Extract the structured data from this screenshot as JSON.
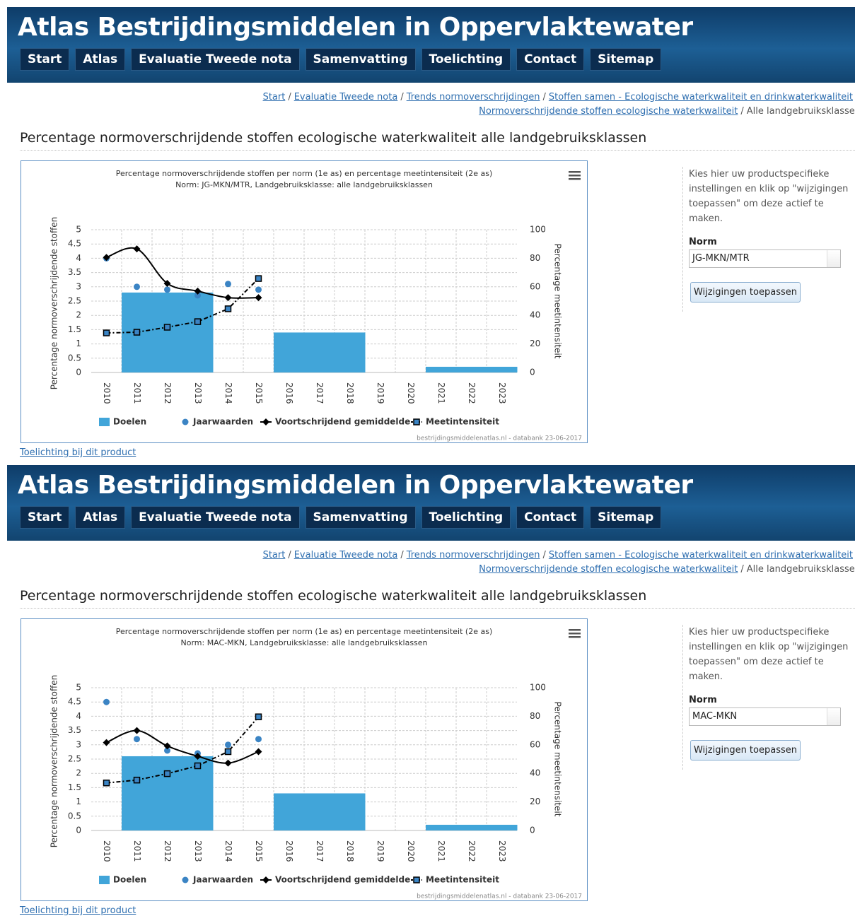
{
  "panels": [
    {
      "header_title": "Atlas Bestrijdingsmiddelen in Oppervlaktewater",
      "nav": [
        "Start",
        "Atlas",
        "Evaluatie Tweede nota",
        "Samenvatting",
        "Toelichting",
        "Contact",
        "Sitemap"
      ],
      "breadcrumb": {
        "separator": "/",
        "line1": [
          "Start",
          "Evaluatie Tweede nota",
          "Trends normoverschrijdingen",
          "Stoffen samen - Ecologische waterkwaliteit en drinkwaterkwaliteit"
        ],
        "line2": [
          "Normoverschrijdende stoffen ecologische waterkwaliteit"
        ],
        "current": "Alle landgebruiksklassen"
      },
      "heading": "Percentage normoverschrijdende stoffen ecologische waterkwaliteit alle landgebruiksklassen",
      "sidebar": {
        "instructions": "Kies hier uw productspecifieke instellingen en klik op \"wijzigingen toepassen\" om deze actief te maken.",
        "norm_label": "Norm",
        "norm_value": "JG-MKN/MTR",
        "button": "Wijzigingen toepassen"
      },
      "footer_link": "Toelichting bij dit product"
    },
    {
      "header_title": "Atlas Bestrijdingsmiddelen in Oppervlaktewater",
      "nav": [
        "Start",
        "Atlas",
        "Evaluatie Tweede nota",
        "Samenvatting",
        "Toelichting",
        "Contact",
        "Sitemap"
      ],
      "breadcrumb": {
        "separator": "/",
        "line1": [
          "Start",
          "Evaluatie Tweede nota",
          "Trends normoverschrijdingen",
          "Stoffen samen - Ecologische waterkwaliteit en drinkwaterkwaliteit"
        ],
        "line2": [
          "Normoverschrijdende stoffen ecologische waterkwaliteit"
        ],
        "current": "Alle landgebruiksklassen"
      },
      "heading": "Percentage normoverschrijdende stoffen ecologische waterkwaliteit alle landgebruiksklassen",
      "sidebar": {
        "instructions": "Kies hier uw productspecifieke instellingen en klik op \"wijzigingen toepassen\" om deze actief te maken.",
        "norm_label": "Norm",
        "norm_value": "MAC-MKN",
        "button": "Wijzigingen toepassen"
      },
      "footer_link": "Toelichting bij dit product"
    }
  ],
  "chart_data": [
    {
      "type": "combo",
      "title": "Percentage normoverschrijdende stoffen per norm (1e as) en percentage meetintensiteit (2e as)",
      "subtitle": "Norm: JG-MKN/MTR, Landgebruiksklasse: alle landgebruiksklassen",
      "y_label": "Percentage normoverschrijdende stoffen",
      "y2_label": "Percentage meetintensiteit",
      "credits": "bestrijdingsmiddelenatlas.nl - databank 23-06-2017",
      "categories": [
        "2010",
        "2011",
        "2012",
        "2013",
        "2014",
        "2015",
        "2016",
        "2017",
        "2018",
        "2019",
        "2020",
        "2021",
        "2022",
        "2023"
      ],
      "ylim": [
        0,
        5
      ],
      "yticks": [
        0,
        0.5,
        1,
        1.5,
        2,
        2.5,
        3,
        3.5,
        4,
        4.5,
        5
      ],
      "y2lim": [
        0,
        100
      ],
      "y2ticks": [
        0,
        20,
        40,
        60,
        80,
        100
      ],
      "grid": true,
      "series": [
        {
          "name": "Doelen",
          "type": "column",
          "color": "#41a5d9",
          "values": [
            null,
            2.8,
            2.8,
            2.8,
            null,
            null,
            1.4,
            1.4,
            1.4,
            null,
            null,
            0.2,
            0.2,
            0.2
          ]
        },
        {
          "name": "Jaarwaarden",
          "type": "scatter",
          "color": "#3b84c4",
          "values": [
            4.0,
            3.0,
            2.9,
            2.7,
            3.1,
            2.9,
            null,
            null,
            null,
            null,
            null,
            null,
            null,
            null
          ]
        },
        {
          "name": "Voortschrijdend gemiddelde",
          "type": "spline",
          "color": "#000000",
          "values": [
            4.03,
            4.33,
            3.12,
            2.85,
            2.62,
            2.62,
            null,
            null,
            null,
            null,
            null,
            null,
            null,
            null
          ]
        },
        {
          "name": "Meetintensiteit",
          "type": "line",
          "axis": "y2",
          "color": "#000000",
          "marker_color": "#3b84c4",
          "values": [
            27.7,
            28.2,
            31.7,
            35.6,
            44.6,
            65.8,
            null,
            null,
            null,
            null,
            null,
            null,
            null,
            null
          ]
        }
      ]
    },
    {
      "type": "combo",
      "title": "Percentage normoverschrijdende stoffen per norm (1e as) en percentage meetintensiteit (2e as)",
      "subtitle": "Norm: MAC-MKN, Landgebruiksklasse: alle landgebruiksklassen",
      "y_label": "Percentage normoverschrijdende stoffen",
      "y2_label": "Percentage meetintensiteit",
      "credits": "bestrijdingsmiddelenatlas.nl - databank 23-06-2017",
      "categories": [
        "2010",
        "2011",
        "2012",
        "2013",
        "2014",
        "2015",
        "2016",
        "2017",
        "2018",
        "2019",
        "2020",
        "2021",
        "2022",
        "2023"
      ],
      "ylim": [
        0,
        5
      ],
      "yticks": [
        0,
        0.5,
        1,
        1.5,
        2,
        2.5,
        3,
        3.5,
        4,
        4.5,
        5
      ],
      "y2lim": [
        0,
        100
      ],
      "y2ticks": [
        0,
        20,
        40,
        60,
        80,
        100
      ],
      "grid": true,
      "series": [
        {
          "name": "Doelen",
          "type": "column",
          "color": "#41a5d9",
          "values": [
            null,
            2.6,
            2.6,
            2.6,
            null,
            null,
            1.3,
            1.3,
            1.3,
            null,
            null,
            0.2,
            0.2,
            0.2
          ]
        },
        {
          "name": "Jaarwaarden",
          "type": "scatter",
          "color": "#3b84c4",
          "values": [
            4.5,
            3.2,
            2.8,
            2.7,
            3.0,
            3.2,
            null,
            null,
            null,
            null,
            null,
            null,
            null,
            null
          ]
        },
        {
          "name": "Voortschrijdend gemiddelde",
          "type": "spline",
          "color": "#000000",
          "values": [
            3.08,
            3.5,
            2.96,
            2.6,
            2.36,
            2.76,
            null,
            null,
            null,
            null,
            null,
            null,
            null,
            null
          ]
        },
        {
          "name": "Meetintensiteit",
          "type": "line",
          "axis": "y2",
          "color": "#000000",
          "marker_color": "#3b84c4",
          "values": [
            33.3,
            35.3,
            39.8,
            45.3,
            55.2,
            79.6,
            null,
            null,
            null,
            null,
            null,
            null,
            null,
            null
          ]
        }
      ]
    }
  ]
}
